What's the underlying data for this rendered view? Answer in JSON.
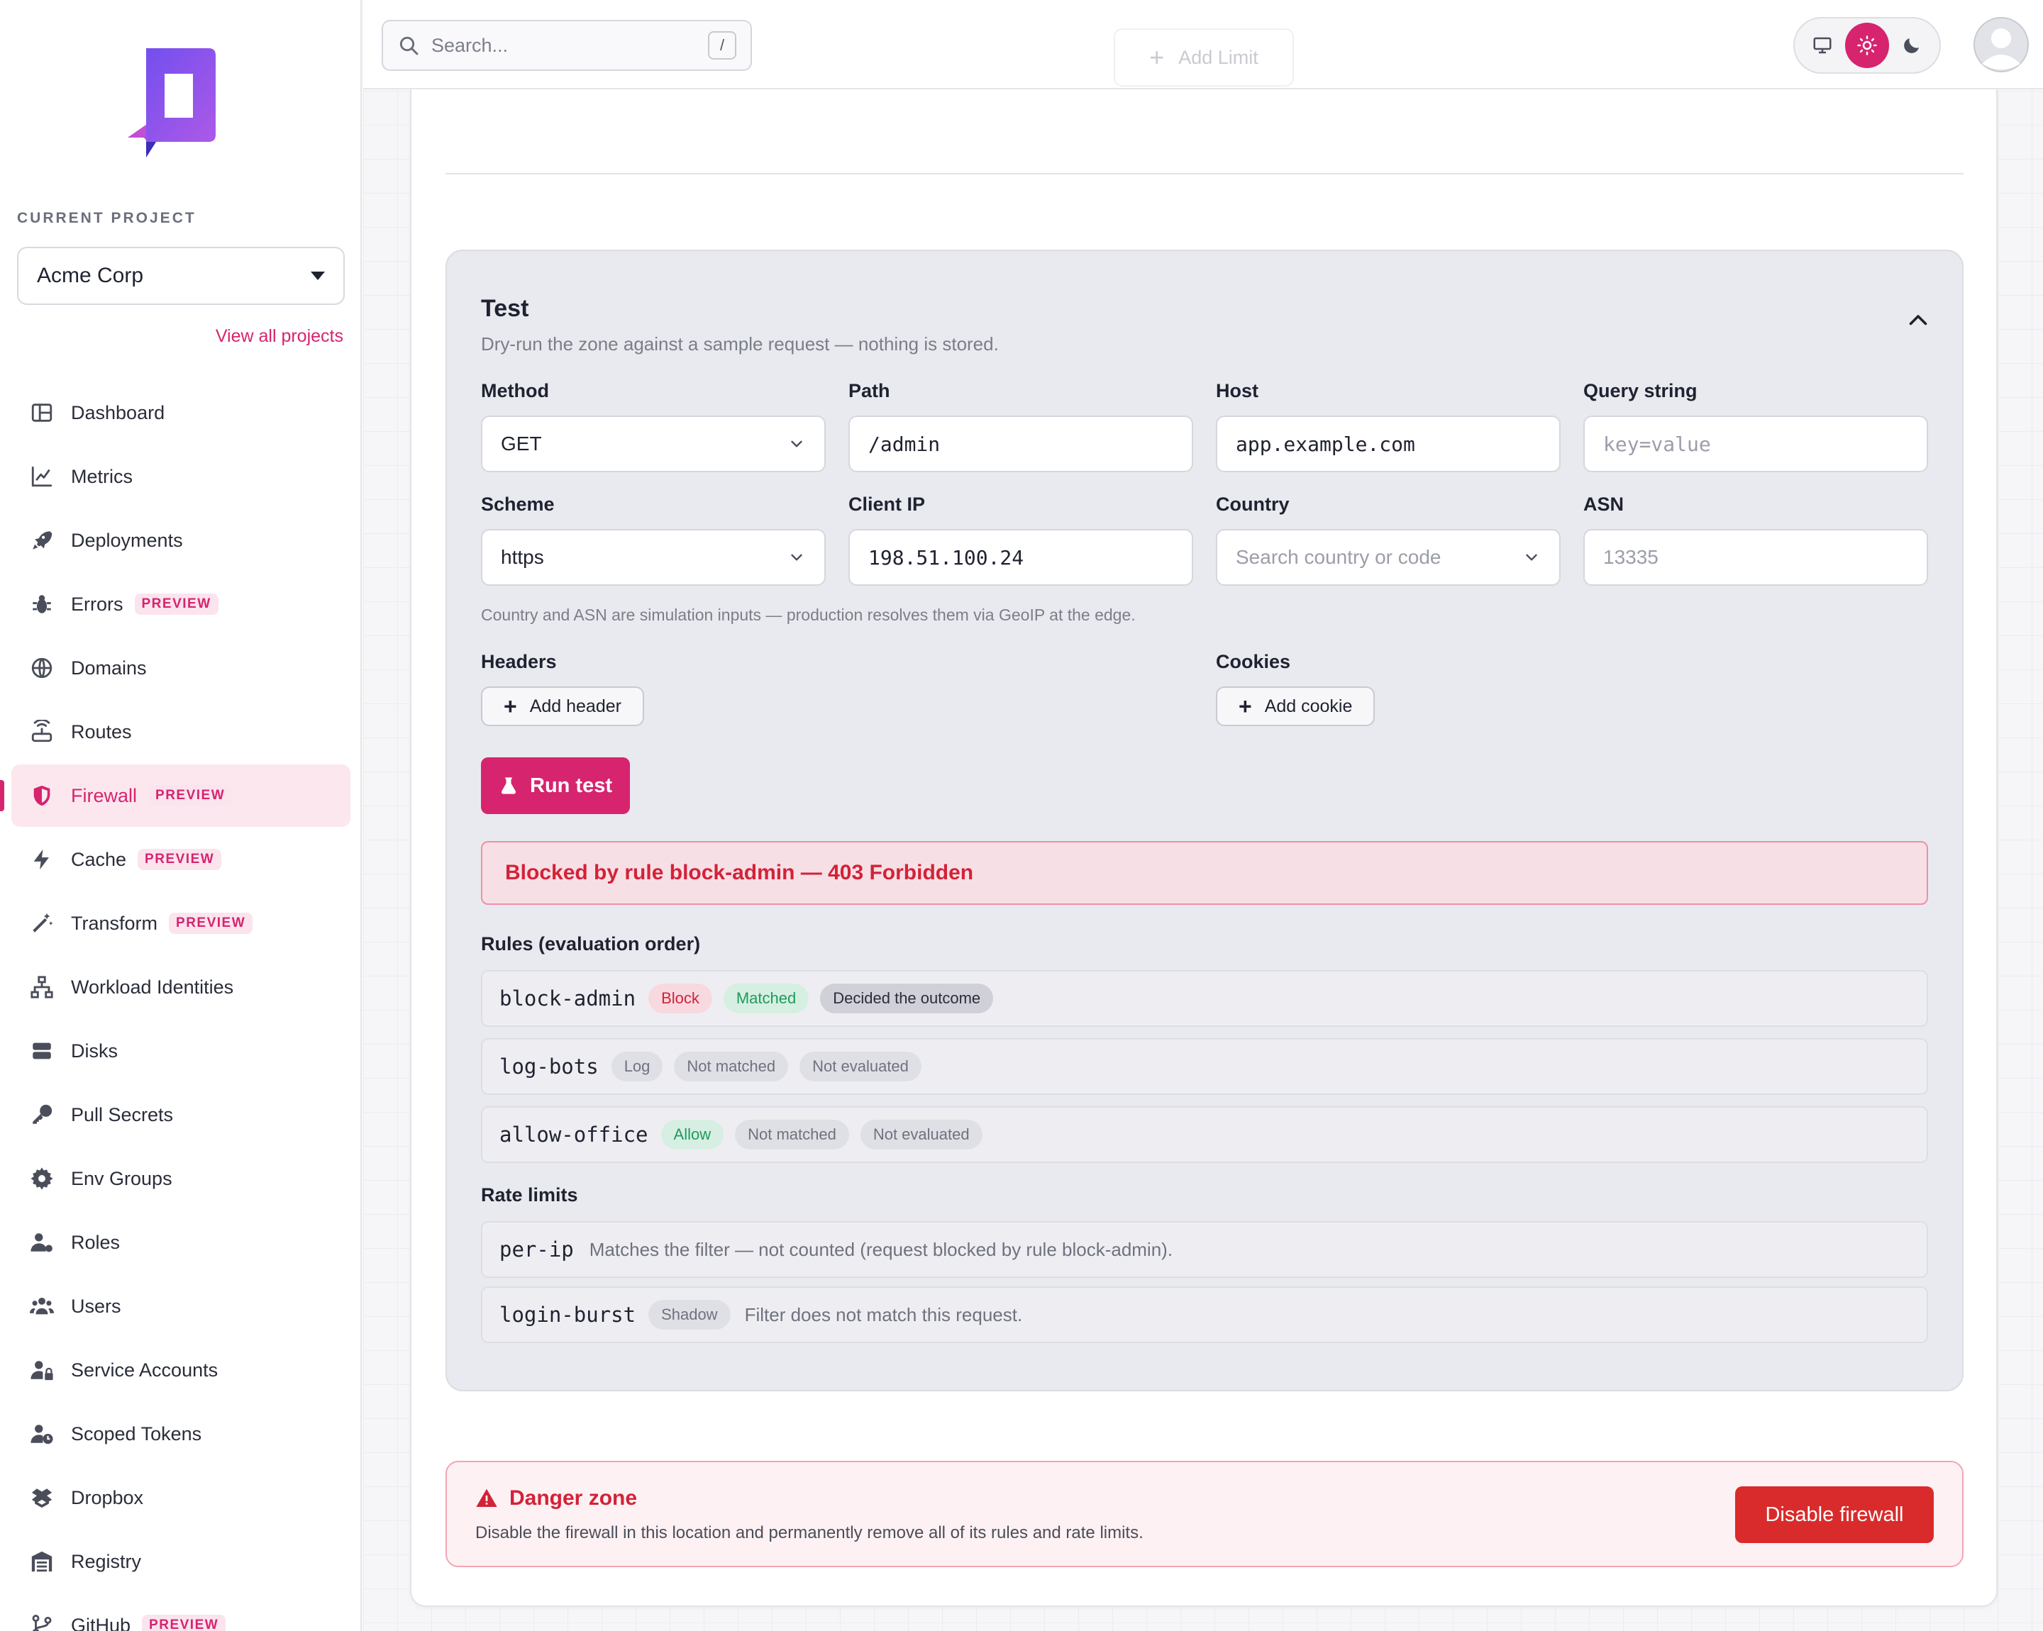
{
  "sidebar": {
    "project_label": "CURRENT PROJECT",
    "project_name": "Acme Corp",
    "view_all": "View all projects",
    "items": [
      {
        "label": "Dashboard",
        "icon": "dashboard-icon",
        "badge": ""
      },
      {
        "label": "Metrics",
        "icon": "chart-line-icon",
        "badge": ""
      },
      {
        "label": "Deployments",
        "icon": "rocket-icon",
        "badge": ""
      },
      {
        "label": "Errors",
        "icon": "bug-icon",
        "badge": "PREVIEW"
      },
      {
        "label": "Domains",
        "icon": "globe-icon",
        "badge": ""
      },
      {
        "label": "Routes",
        "icon": "router-icon",
        "badge": ""
      },
      {
        "label": "Firewall",
        "icon": "shield-icon",
        "badge": "PREVIEW",
        "active": true
      },
      {
        "label": "Cache",
        "icon": "bolt-icon",
        "badge": "PREVIEW"
      },
      {
        "label": "Transform",
        "icon": "wand-icon",
        "badge": "PREVIEW"
      },
      {
        "label": "Workload Identities",
        "icon": "network-icon",
        "badge": ""
      },
      {
        "label": "Disks",
        "icon": "disk-icon",
        "badge": ""
      },
      {
        "label": "Pull Secrets",
        "icon": "key-icon",
        "badge": ""
      },
      {
        "label": "Env Groups",
        "icon": "gear-icon",
        "badge": ""
      },
      {
        "label": "Roles",
        "icon": "user-gear-icon",
        "badge": ""
      },
      {
        "label": "Users",
        "icon": "users-icon",
        "badge": ""
      },
      {
        "label": "Service Accounts",
        "icon": "user-lock-icon",
        "badge": ""
      },
      {
        "label": "Scoped Tokens",
        "icon": "user-clock-icon",
        "badge": ""
      },
      {
        "label": "Dropbox",
        "icon": "box-icon",
        "badge": ""
      },
      {
        "label": "Registry",
        "icon": "warehouse-icon",
        "badge": ""
      },
      {
        "label": "GitHub",
        "icon": "git-branch-icon",
        "badge": "PREVIEW"
      }
    ]
  },
  "topbar": {
    "search_placeholder": "Search...",
    "search_shortcut": "/",
    "add_limit_label": "Add Limit",
    "theme_selected": "light"
  },
  "test": {
    "title": "Test",
    "subtitle": "Dry-run the zone against a sample request — nothing is stored.",
    "method_label": "Method",
    "method_value": "GET",
    "path_label": "Path",
    "path_value": "/admin",
    "host_label": "Host",
    "host_value": "app.example.com",
    "query_label": "Query string",
    "query_placeholder": "key=value",
    "scheme_label": "Scheme",
    "scheme_value": "https",
    "client_ip_label": "Client IP",
    "client_ip_value": "198.51.100.24",
    "country_label": "Country",
    "country_placeholder": "Search country or code",
    "asn_label": "ASN",
    "asn_placeholder": "13335",
    "hint": "Country and ASN are simulation inputs — production resolves them via GeoIP at the edge.",
    "headers_label": "Headers",
    "add_header": "Add header",
    "cookies_label": "Cookies",
    "add_cookie": "Add cookie",
    "run_label": "Run test",
    "result": "Blocked by rule block-admin — 403 Forbidden",
    "rules_title": "Rules (evaluation order)",
    "rules": [
      {
        "name": "block-admin",
        "action": "Block",
        "match": "Matched",
        "outcome": "Decided the outcome"
      },
      {
        "name": "log-bots",
        "action": "Log",
        "match": "Not matched",
        "outcome": "Not evaluated"
      },
      {
        "name": "allow-office",
        "action": "Allow",
        "match": "Not matched",
        "outcome": "Not evaluated"
      }
    ],
    "rate_title": "Rate limits",
    "rate_limits": [
      {
        "name": "per-ip",
        "badge": "",
        "desc": "Matches the filter — not counted (request blocked by rule block-admin)."
      },
      {
        "name": "login-burst",
        "badge": "Shadow",
        "desc": "Filter does not match this request."
      }
    ]
  },
  "danger": {
    "title": "Danger zone",
    "subtitle": "Disable the firewall in this location and permanently remove all of its rules and rate limits.",
    "button": "Disable firewall"
  },
  "colors": {
    "accent": "#d6246e",
    "danger": "#d92b2b",
    "success": "#1f9a5d"
  }
}
